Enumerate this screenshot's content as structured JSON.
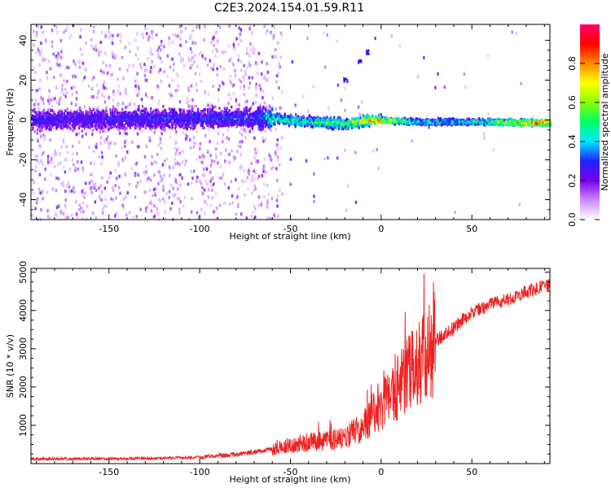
{
  "title": "C2E3.2024.154.01.59.R11",
  "chart_data": [
    {
      "type": "heatmap",
      "xlabel": "Height of straight line (km)",
      "ylabel": "Frequency (Hz)",
      "xlim": [
        -193,
        93
      ],
      "ylim": [
        -50,
        48
      ],
      "xticks": [
        -150,
        -100,
        -50,
        0,
        50
      ],
      "yticks": [
        -40,
        -20,
        0,
        20,
        40
      ],
      "colorbar": {
        "label": "Normalized spectral amplitude",
        "range": [
          0,
          1
        ],
        "ticks": [
          "0.0",
          "0.2",
          "0.4",
          "0.6",
          "0.8"
        ],
        "tick_values": [
          0,
          0.2,
          0.4,
          0.6,
          0.8
        ],
        "colors": [
          "#ffffff",
          "#cc88ff",
          "#7700ee",
          "#2222ff",
          "#00e6ff",
          "#00ff66",
          "#88ff00",
          "#ffff00",
          "#ff8800",
          "#ff0000",
          "#ff0066"
        ]
      },
      "ridge": {
        "description_points": [
          {
            "x": -193,
            "freq": 0,
            "amp": 0.3
          },
          {
            "x": -70,
            "freq": 1,
            "amp": 0.35
          },
          {
            "x": -60,
            "freq": 1,
            "amp": 0.55
          },
          {
            "x": -40,
            "freq": -1,
            "amp": 0.55
          },
          {
            "x": -20,
            "freq": -2,
            "amp": 0.6
          },
          {
            "x": -5,
            "freq": 0,
            "amp": 0.85
          },
          {
            "x": 20,
            "freq": -1,
            "amp": 0.5
          },
          {
            "x": 50,
            "freq": -1,
            "amp": 0.5
          },
          {
            "x": 88,
            "freq": -1.5,
            "amp": 0.95
          }
        ]
      }
    },
    {
      "type": "line",
      "xlabel": "Height of straight line (km)",
      "ylabel": "SNR (10 * v/v)",
      "xlim": [
        -193,
        93
      ],
      "ylim": [
        0,
        5100
      ],
      "xticks": [
        -150,
        -100,
        -50,
        0,
        50
      ],
      "yticks": [
        1000,
        2000,
        3000,
        4000,
        5000
      ],
      "color": "#ee2222",
      "series": [
        {
          "x": [
            -193,
            -150,
            -120,
            -100,
            -90,
            -80,
            -70,
            -60,
            -50,
            -40,
            -30,
            -20,
            -10,
            0,
            5,
            10,
            15,
            20,
            25,
            30,
            40,
            50,
            60,
            70,
            80,
            93
          ],
          "values": [
            120,
            130,
            140,
            170,
            200,
            240,
            300,
            380,
            480,
            560,
            600,
            650,
            1000,
            1550,
            1750,
            2000,
            2300,
            2700,
            2950,
            3200,
            3550,
            3950,
            4150,
            4300,
            4500,
            4650
          ]
        }
      ]
    }
  ]
}
